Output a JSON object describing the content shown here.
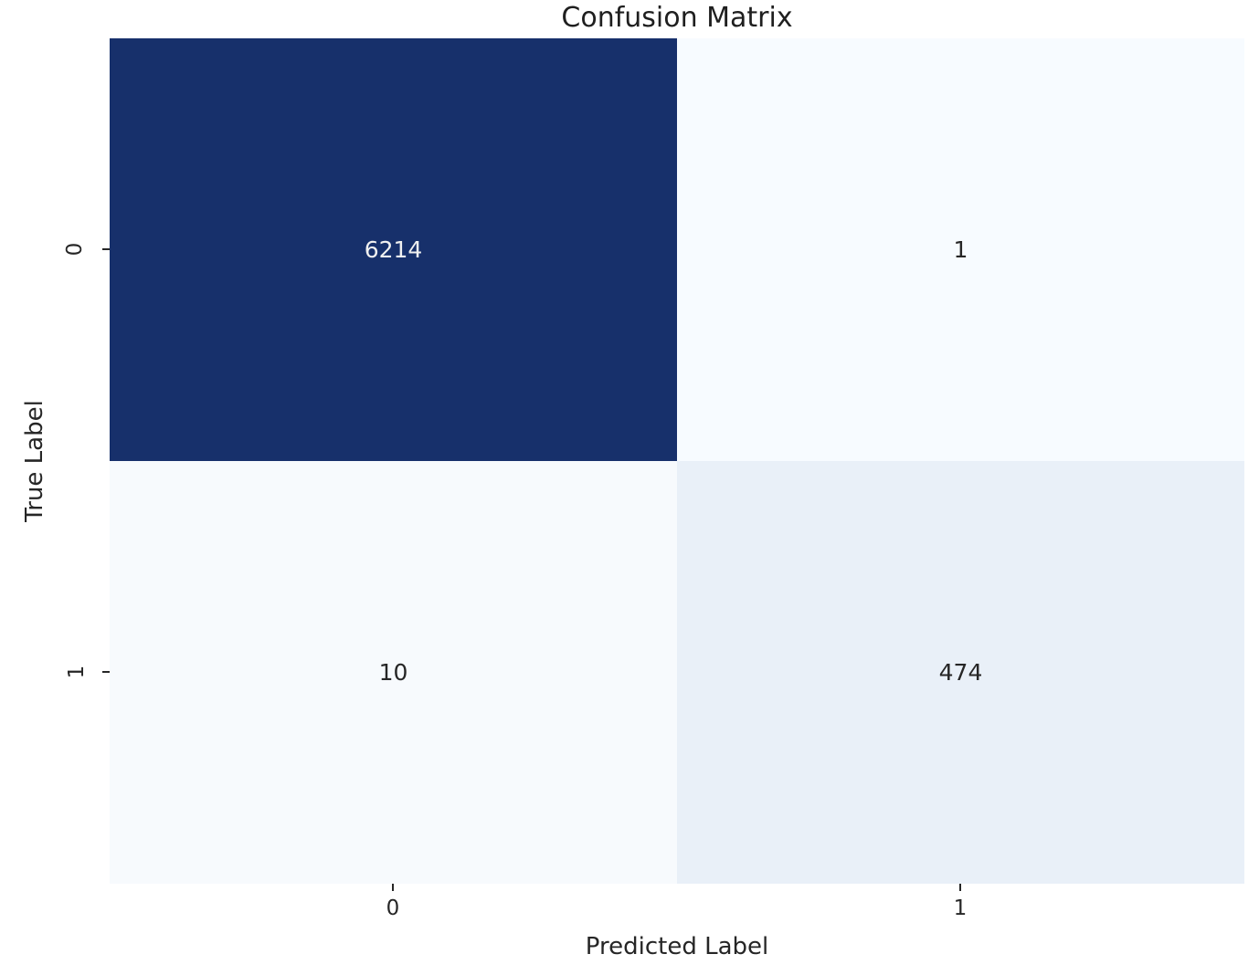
{
  "chart_data": {
    "type": "heatmap",
    "title": "Confusion Matrix",
    "xlabel": "Predicted Label",
    "ylabel": "True Label",
    "x_tick_labels": [
      "0",
      "1"
    ],
    "y_tick_labels": [
      "0",
      "1"
    ],
    "matrix": [
      [
        6214,
        1
      ],
      [
        10,
        474
      ]
    ],
    "colormap": "Blues",
    "colorbar": "none",
    "background_color": "#ffffff",
    "text_color": "#262626",
    "cells": [
      {
        "row": "0",
        "col": "0",
        "value": "6214",
        "bg": "#17306b",
        "fg": "#f0f0f0"
      },
      {
        "row": "0",
        "col": "1",
        "value": "1",
        "bg": "#f7fbff",
        "fg": "#262626"
      },
      {
        "row": "1",
        "col": "0",
        "value": "10",
        "bg": "#f7fafd",
        "fg": "#262626"
      },
      {
        "row": "1",
        "col": "1",
        "value": "474",
        "bg": "#e9f0f8",
        "fg": "#262626"
      }
    ]
  }
}
